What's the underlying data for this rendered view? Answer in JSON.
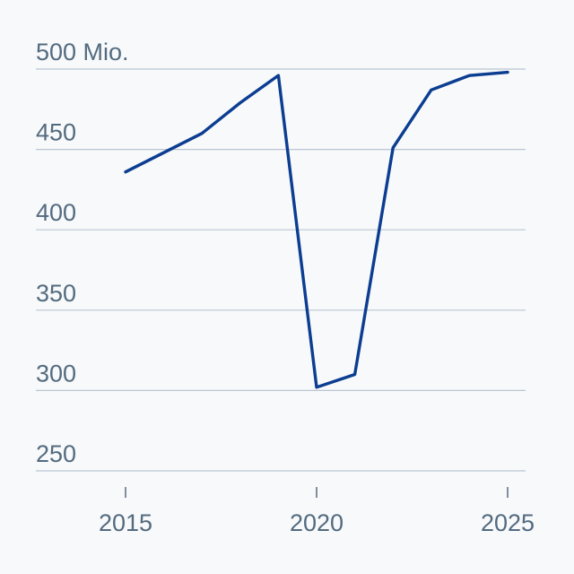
{
  "chart_data": {
    "type": "line",
    "x": [
      2015,
      2016,
      2017,
      2018,
      2019,
      2020,
      2021,
      2022,
      2023,
      2024,
      2025
    ],
    "series": [
      {
        "values": [
          436,
          448,
          460,
          479,
          496,
          302,
          310,
          451,
          487,
          496,
          498
        ]
      }
    ],
    "y_ticks": [
      250,
      300,
      350,
      400,
      450,
      500
    ],
    "y_tick_labels": [
      "250",
      "300",
      "350",
      "400",
      "450",
      "500 Mio."
    ],
    "x_ticks": [
      2015,
      2020,
      2025
    ],
    "x_tick_labels": [
      "2015",
      "2020",
      "2025"
    ],
    "ylim": [
      250,
      500
    ],
    "xlim": [
      2015,
      2025
    ],
    "grid": "horizontal",
    "colors": {
      "line": "#0b3d91",
      "grid": "#b9c6d3",
      "text": "#536b80",
      "background": "#f8f9fa"
    }
  }
}
